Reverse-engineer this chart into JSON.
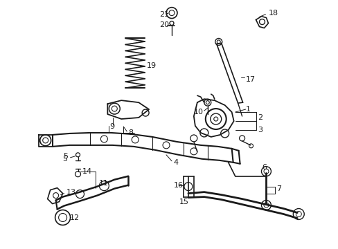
{
  "bg_color": "#ffffff",
  "line_color": "#1a1a1a",
  "figsize": [
    4.89,
    3.6
  ],
  "dpi": 100,
  "xlim": [
    0,
    489
  ],
  "ylim": [
    0,
    360
  ]
}
